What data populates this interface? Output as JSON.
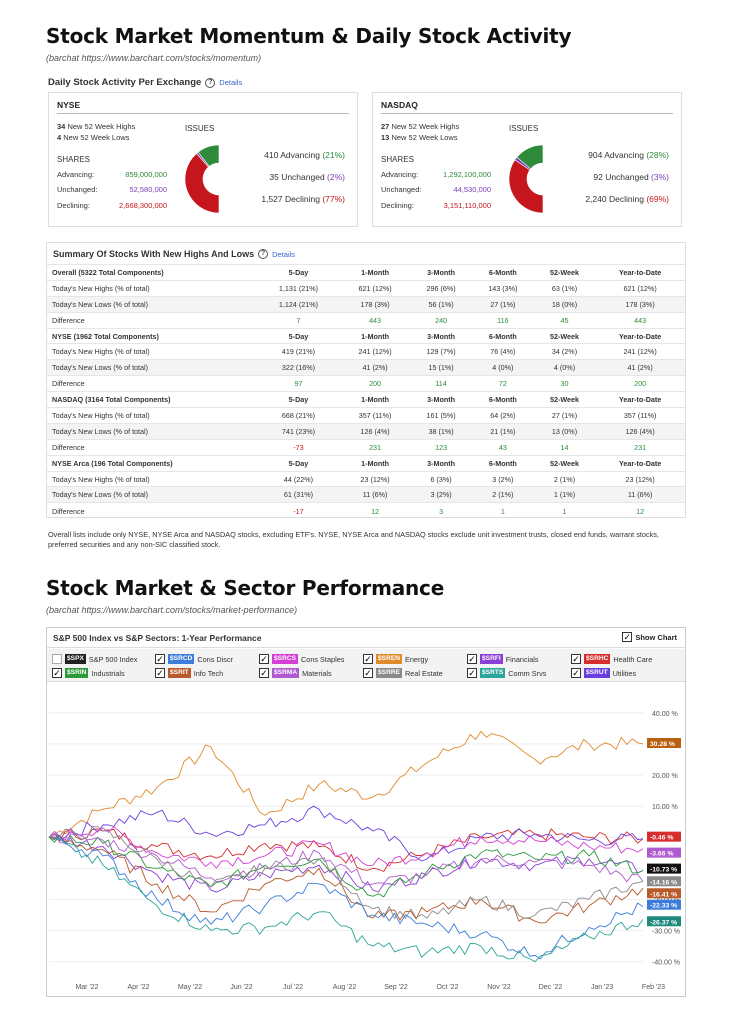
{
  "momentum": {
    "title": "Stock Market Momentum & Daily Stock Activity",
    "source": "(barchat https://www.barchart.com/stocks/momentum)",
    "daily_title": "Daily Stock Activity Per Exchange",
    "details": "Details",
    "issues_label": "ISSUES",
    "shares_label": "SHARES",
    "advancing_label": "Advancing:",
    "unchanged_label": "Unchanged:",
    "declining_label": "Declining:",
    "highs_suffix": "New 52 Week Highs",
    "lows_suffix": "New 52 Week Lows",
    "nyse": {
      "name": "NYSE",
      "highs": "34",
      "lows": "4",
      "adv_shares": "859,000,000",
      "unch_shares": "52,580,000",
      "dec_shares": "2,668,300,000",
      "adv_issues": "410 Advancing",
      "adv_pct": "(21%)",
      "unch_issues": "35 Unchanged",
      "unch_pct": "(2%)",
      "dec_issues": "1,527 Declining",
      "dec_pct": "(77%)",
      "donut": [
        21,
        2,
        77
      ]
    },
    "nasdaq": {
      "name": "NASDAQ",
      "highs": "27",
      "lows": "13",
      "adv_shares": "1,292,100,000",
      "unch_shares": "44,530,000",
      "dec_shares": "3,151,110,000",
      "adv_issues": "904 Advancing",
      "adv_pct": "(28%)",
      "unch_issues": "92 Unchanged",
      "unch_pct": "(3%)",
      "dec_issues": "2,240 Declining",
      "dec_pct": "(69%)",
      "donut": [
        28,
        3,
        69
      ]
    },
    "colors": {
      "advancing": "#2e8b3a",
      "unchanged": "#7b3fb5",
      "declining": "#c4161c"
    }
  },
  "summary": {
    "title": "Summary Of Stocks With New Highs And Lows",
    "details": "Details",
    "columns": [
      "5-Day",
      "1-Month",
      "3-Month",
      "6-Month",
      "52-Week",
      "Year-to-Date"
    ],
    "groups": [
      {
        "name": "Overall (5322 Total Components)",
        "highs": [
          "1,131 (21%)",
          "621 (12%)",
          "296 (6%)",
          "143 (3%)",
          "63 (1%)",
          "621 (12%)"
        ],
        "lows": [
          "1,124 (21%)",
          "178 (3%)",
          "56 (1%)",
          "27 (1%)",
          "18 (0%)",
          "178 (3%)"
        ],
        "diff": [
          "7",
          "443",
          "240",
          "116",
          "45",
          "443"
        ]
      },
      {
        "name": "NYSE (1962 Total Components)",
        "highs": [
          "419 (21%)",
          "241 (12%)",
          "129 (7%)",
          "76 (4%)",
          "34 (2%)",
          "241 (12%)"
        ],
        "lows": [
          "322 (16%)",
          "41 (2%)",
          "15 (1%)",
          "4 (0%)",
          "4 (0%)",
          "41 (2%)"
        ],
        "diff": [
          "97",
          "200",
          "114",
          "72",
          "30",
          "200"
        ]
      },
      {
        "name": "NASDAQ (3164 Total Components)",
        "highs": [
          "668 (21%)",
          "357 (11%)",
          "161 (5%)",
          "64 (2%)",
          "27 (1%)",
          "357 (11%)"
        ],
        "lows": [
          "741 (23%)",
          "126 (4%)",
          "38 (1%)",
          "21 (1%)",
          "13 (0%)",
          "126 (4%)"
        ],
        "diff": [
          "-73",
          "231",
          "123",
          "43",
          "14",
          "231"
        ]
      },
      {
        "name": "NYSE Arca (196 Total Components)",
        "highs": [
          "44 (22%)",
          "23 (12%)",
          "6 (3%)",
          "3 (2%)",
          "2 (1%)",
          "23 (12%)"
        ],
        "lows": [
          "61 (31%)",
          "11 (6%)",
          "3 (2%)",
          "2 (1%)",
          "1 (1%)",
          "11 (6%)"
        ],
        "diff": [
          "-17",
          "12",
          "3",
          "1",
          "1",
          "12"
        ]
      }
    ],
    "row_highs": "Today's New Highs (% of total)",
    "row_lows": "Today's New Lows (% of total)",
    "row_diff": "Difference",
    "note": "Overall lists include only NYSE, NYSE Arca and NASDAQ stocks, excluding ETF's. NYSE, NYSE Arca and NASDAQ stocks exclude unit investment trusts, closed end funds, warrant stocks, preferred securities and any non-SIC classified stock."
  },
  "performance": {
    "title": "Stock Market & Sector Performance",
    "source": "(barchat https://www.barchart.com/stocks/market-performance)",
    "chart_title": "S&P 500 Index vs S&P Sectors: 1-Year Performance",
    "show_chart": "Show Chart",
    "legend": [
      {
        "sym": "$SPX",
        "name": "S&P 500 Index",
        "color": "#222222",
        "checked": false
      },
      {
        "sym": "$SRCD",
        "name": "Cons Discr",
        "color": "#3b7dd8",
        "checked": true
      },
      {
        "sym": "$SRCS",
        "name": "Cons Staples",
        "color": "#d63fd6",
        "checked": true
      },
      {
        "sym": "$SREN",
        "name": "Energy",
        "color": "#e08a2c",
        "checked": true
      },
      {
        "sym": "$SRFI",
        "name": "Financials",
        "color": "#8a3fd6",
        "checked": true
      },
      {
        "sym": "$SRHC",
        "name": "Health Care",
        "color": "#d62d2d",
        "checked": true
      },
      {
        "sym": "$SRIN",
        "name": "Industrials",
        "color": "#2a9a3a",
        "checked": true
      },
      {
        "sym": "$SRIT",
        "name": "Info Tech",
        "color": "#b85a2a",
        "checked": true
      },
      {
        "sym": "$SRMA",
        "name": "Materials",
        "color": "#b05ad0",
        "checked": true
      },
      {
        "sym": "$SRRE",
        "name": "Real Estate",
        "color": "#8a8a8a",
        "checked": true
      },
      {
        "sym": "$SRTS",
        "name": "Comm Srvs",
        "color": "#2aa598",
        "checked": true
      },
      {
        "sym": "$SRUT",
        "name": "Utilities",
        "color": "#6a3fe0",
        "checked": true
      }
    ]
  },
  "chart_data": {
    "type": "line",
    "title": "S&P 500 Index vs S&P Sectors: 1-Year Performance",
    "x": [
      "Mar '22",
      "Apr '22",
      "May '22",
      "Jun '22",
      "Jul '22",
      "Aug '22",
      "Sep '22",
      "Oct '22",
      "Nov '22",
      "Dec '22",
      "Jan '23",
      "Feb '23"
    ],
    "y_ticks": [
      "40.00 %",
      "30.00 %",
      "20.00 %",
      "10.00 %",
      "0.00 %",
      "-10.00 %",
      "-20.00 %",
      "-30.00 %",
      "-40.00 %"
    ],
    "ylim": [
      -43,
      47
    ],
    "end_labels": [
      "30.28 %",
      "-0.46 %",
      "-3.66 %",
      "-10.73 %",
      "-14.16 %",
      "-16.41 %",
      "-22.33 %",
      "-26.37 %"
    ],
    "series": [
      {
        "name": "Energy",
        "color": "#e08a2c",
        "values": [
          0,
          9,
          16,
          29,
          7,
          17,
          13,
          24,
          34,
          25,
          30,
          30
        ]
      },
      {
        "name": "Health Care",
        "color": "#d62d2d",
        "values": [
          0,
          2,
          -3,
          -6,
          -2,
          -3,
          -10,
          -5,
          0,
          1,
          0,
          -0.5
        ]
      },
      {
        "name": "Utilities",
        "color": "#6a3fe0",
        "values": [
          0,
          4,
          8,
          1,
          4,
          9,
          2,
          -7,
          0,
          1,
          -1,
          -0.5
        ]
      },
      {
        "name": "Cons Staples",
        "color": "#d63fd6",
        "values": [
          0,
          3,
          -5,
          -8,
          -6,
          -2,
          -9,
          -5,
          0,
          -1,
          -3,
          -3.7
        ]
      },
      {
        "name": "Financials",
        "color": "#8a3fd6",
        "values": [
          0,
          -3,
          -12,
          -17,
          -12,
          -9,
          -17,
          -12,
          -7,
          -9,
          -7,
          -10.7
        ]
      },
      {
        "name": "Industrials",
        "color": "#2a9a3a",
        "values": [
          0,
          -2,
          -10,
          -16,
          -9,
          -7,
          -19,
          -11,
          -5,
          -7,
          -6,
          -10.7
        ]
      },
      {
        "name": "Materials",
        "color": "#b05ad0",
        "values": [
          0,
          -1,
          -6,
          -13,
          -10,
          -5,
          -15,
          -12,
          -7,
          -8,
          -9,
          -14.2
        ]
      },
      {
        "name": "Info Tech",
        "color": "#b85a2a",
        "values": [
          0,
          -4,
          -15,
          -24,
          -15,
          -10,
          -26,
          -24,
          -20,
          -27,
          -22,
          -16.4
        ]
      },
      {
        "name": "Real Estate",
        "color": "#8a8a8a",
        "values": [
          0,
          2,
          -7,
          -16,
          -10,
          -7,
          -23,
          -26,
          -20,
          -25,
          -20,
          -14.2
        ]
      },
      {
        "name": "Cons Discr",
        "color": "#3b7dd8",
        "values": [
          0,
          -6,
          -20,
          -28,
          -22,
          -15,
          -25,
          -28,
          -31,
          -38,
          -29,
          -22.3
        ]
      },
      {
        "name": "Comm Srvs",
        "color": "#2aa598",
        "values": [
          0,
          -9,
          -22,
          -30,
          -29,
          -24,
          -35,
          -37,
          -35,
          -40,
          -32,
          -26.4
        ]
      }
    ]
  }
}
